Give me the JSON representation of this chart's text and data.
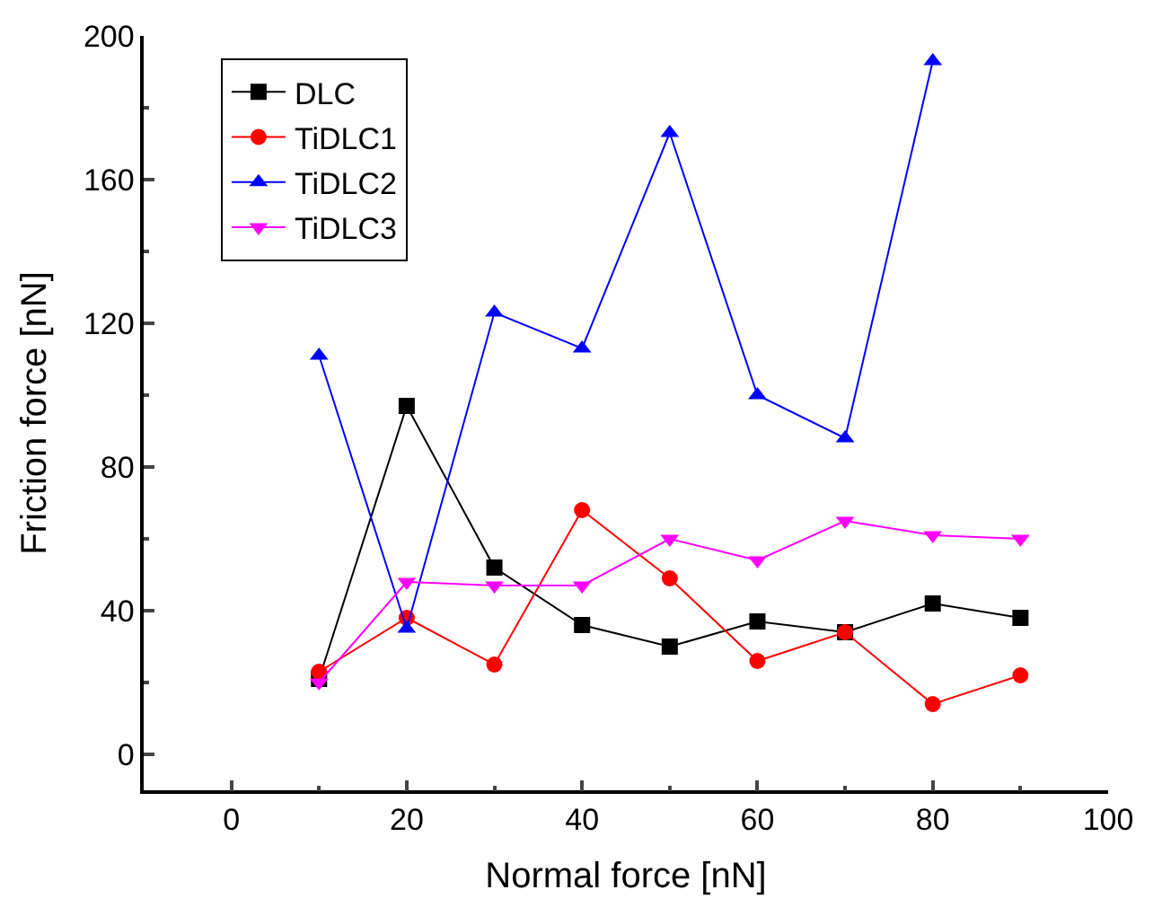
{
  "chart_data": {
    "type": "line",
    "xlabel": "Normal force [nN]",
    "ylabel": "Friction force [nN]",
    "x": [
      10,
      20,
      30,
      40,
      50,
      60,
      70,
      80,
      90
    ],
    "series": [
      {
        "name": "DLC",
        "color": "#000000",
        "marker": "square",
        "values": [
          21,
          97,
          52,
          36,
          30,
          37,
          34,
          42,
          38
        ]
      },
      {
        "name": "TiDLC1",
        "color": "#ff0000",
        "marker": "circle",
        "values": [
          23,
          38,
          25,
          68,
          49,
          26,
          34,
          14,
          22
        ]
      },
      {
        "name": "TiDLC2",
        "color": "#0000ff",
        "marker": "triangle",
        "values": [
          111,
          35,
          123,
          113,
          173,
          100,
          88,
          193,
          null
        ]
      },
      {
        "name": "TiDLC3",
        "color": "#ff00ff",
        "marker": "triangle-down",
        "values": [
          20,
          48,
          47,
          47,
          60,
          54,
          65,
          61,
          60
        ]
      }
    ],
    "xlim": [
      -10,
      100
    ],
    "xticks": [
      0,
      20,
      40,
      60,
      80,
      100
    ],
    "ylim": [
      -10,
      200
    ],
    "yticks": [
      0,
      40,
      80,
      120,
      160,
      200
    ],
    "legend": "top left",
    "line_style": "solid"
  }
}
